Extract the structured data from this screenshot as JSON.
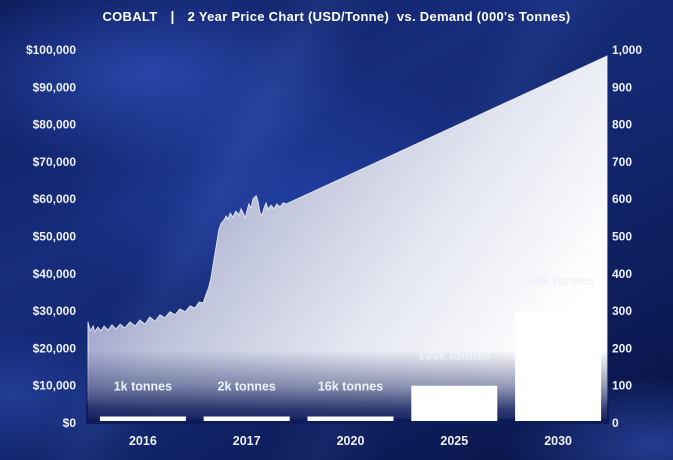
{
  "title": {
    "brand": "COBALT",
    "separator": "|",
    "text": "2 Year Price Chart (USD/Tonne)  vs. Demand (000's Tonnes)"
  },
  "colors": {
    "background_navy": "#0d1b5a",
    "accent_royal": "#1d36a0",
    "area_top": "#8a91c4",
    "area_bottom": "#ffffff",
    "bar_fill": "#ffffff",
    "text": "#eef1fa"
  },
  "chart_data": {
    "type": "combo",
    "title": "COBALT | 2 Year Price Chart (USD/Tonne) vs. Demand (000's Tonnes)",
    "grid": false,
    "legend": false,
    "left_axis": {
      "range": [
        0,
        100000
      ],
      "ticks": [
        "$100,000",
        "$90,000",
        "$80,000",
        "$70,000",
        "$60,000",
        "$50,000",
        "$40,000",
        "$30,000",
        "$20,000",
        "$10,000",
        "$0"
      ]
    },
    "right_axis": {
      "range": [
        0,
        1000
      ],
      "ticks": [
        "1,000",
        "900",
        "800",
        "700",
        "600",
        "500",
        "400",
        "300",
        "200",
        "100",
        "0"
      ]
    },
    "x_ticks": [
      "2016",
      "2017",
      "2020",
      "2025",
      "2030"
    ],
    "series": [
      {
        "name": "Price (USD/Tonne)",
        "type": "area",
        "axis": "left",
        "points": [
          [
            0.0,
            27100
          ],
          [
            0.004,
            24700
          ],
          [
            0.01,
            26000
          ],
          [
            0.013,
            24400
          ],
          [
            0.019,
            25700
          ],
          [
            0.025,
            24700
          ],
          [
            0.031,
            26000
          ],
          [
            0.039,
            24900
          ],
          [
            0.046,
            26300
          ],
          [
            0.054,
            25200
          ],
          [
            0.062,
            26500
          ],
          [
            0.071,
            25500
          ],
          [
            0.081,
            27100
          ],
          [
            0.091,
            26000
          ],
          [
            0.1,
            27600
          ],
          [
            0.11,
            26500
          ],
          [
            0.119,
            28400
          ],
          [
            0.129,
            27300
          ],
          [
            0.139,
            29000
          ],
          [
            0.148,
            28200
          ],
          [
            0.158,
            29800
          ],
          [
            0.168,
            29000
          ],
          [
            0.177,
            30600
          ],
          [
            0.187,
            29800
          ],
          [
            0.197,
            31400
          ],
          [
            0.206,
            30800
          ],
          [
            0.214,
            32400
          ],
          [
            0.222,
            32200
          ],
          [
            0.227,
            34300
          ],
          [
            0.233,
            36500
          ],
          [
            0.237,
            38900
          ],
          [
            0.241,
            42400
          ],
          [
            0.245,
            45800
          ],
          [
            0.249,
            49100
          ],
          [
            0.252,
            51700
          ],
          [
            0.256,
            53400
          ],
          [
            0.262,
            54400
          ],
          [
            0.266,
            55500
          ],
          [
            0.27,
            54700
          ],
          [
            0.274,
            56300
          ],
          [
            0.279,
            55200
          ],
          [
            0.285,
            56800
          ],
          [
            0.291,
            55800
          ],
          [
            0.295,
            57400
          ],
          [
            0.299,
            56300
          ],
          [
            0.303,
            55000
          ],
          [
            0.306,
            56800
          ],
          [
            0.31,
            58700
          ],
          [
            0.314,
            57600
          ],
          [
            0.318,
            60100
          ],
          [
            0.324,
            60900
          ],
          [
            0.328,
            59200
          ],
          [
            0.331,
            56600
          ],
          [
            0.335,
            55500
          ],
          [
            0.339,
            57600
          ],
          [
            0.343,
            59000
          ],
          [
            0.347,
            57400
          ],
          [
            0.353,
            58400
          ],
          [
            0.358,
            57400
          ],
          [
            0.364,
            58700
          ],
          [
            0.37,
            57900
          ],
          [
            0.376,
            59000
          ],
          [
            0.382,
            58700
          ],
          [
            1.0,
            98400
          ]
        ]
      },
      {
        "name": "Demand (000's Tonnes)",
        "type": "bar",
        "axis": "right",
        "categories": [
          "2016",
          "2017",
          "2020",
          "2025",
          "2030"
        ],
        "values_thousand_tonnes": [
          1,
          2,
          16,
          100,
          300
        ],
        "labels": [
          "1k tonnes",
          "2k tonnes",
          "16k tonnes",
          "100k tonnes",
          "300k tonnes"
        ]
      }
    ]
  }
}
